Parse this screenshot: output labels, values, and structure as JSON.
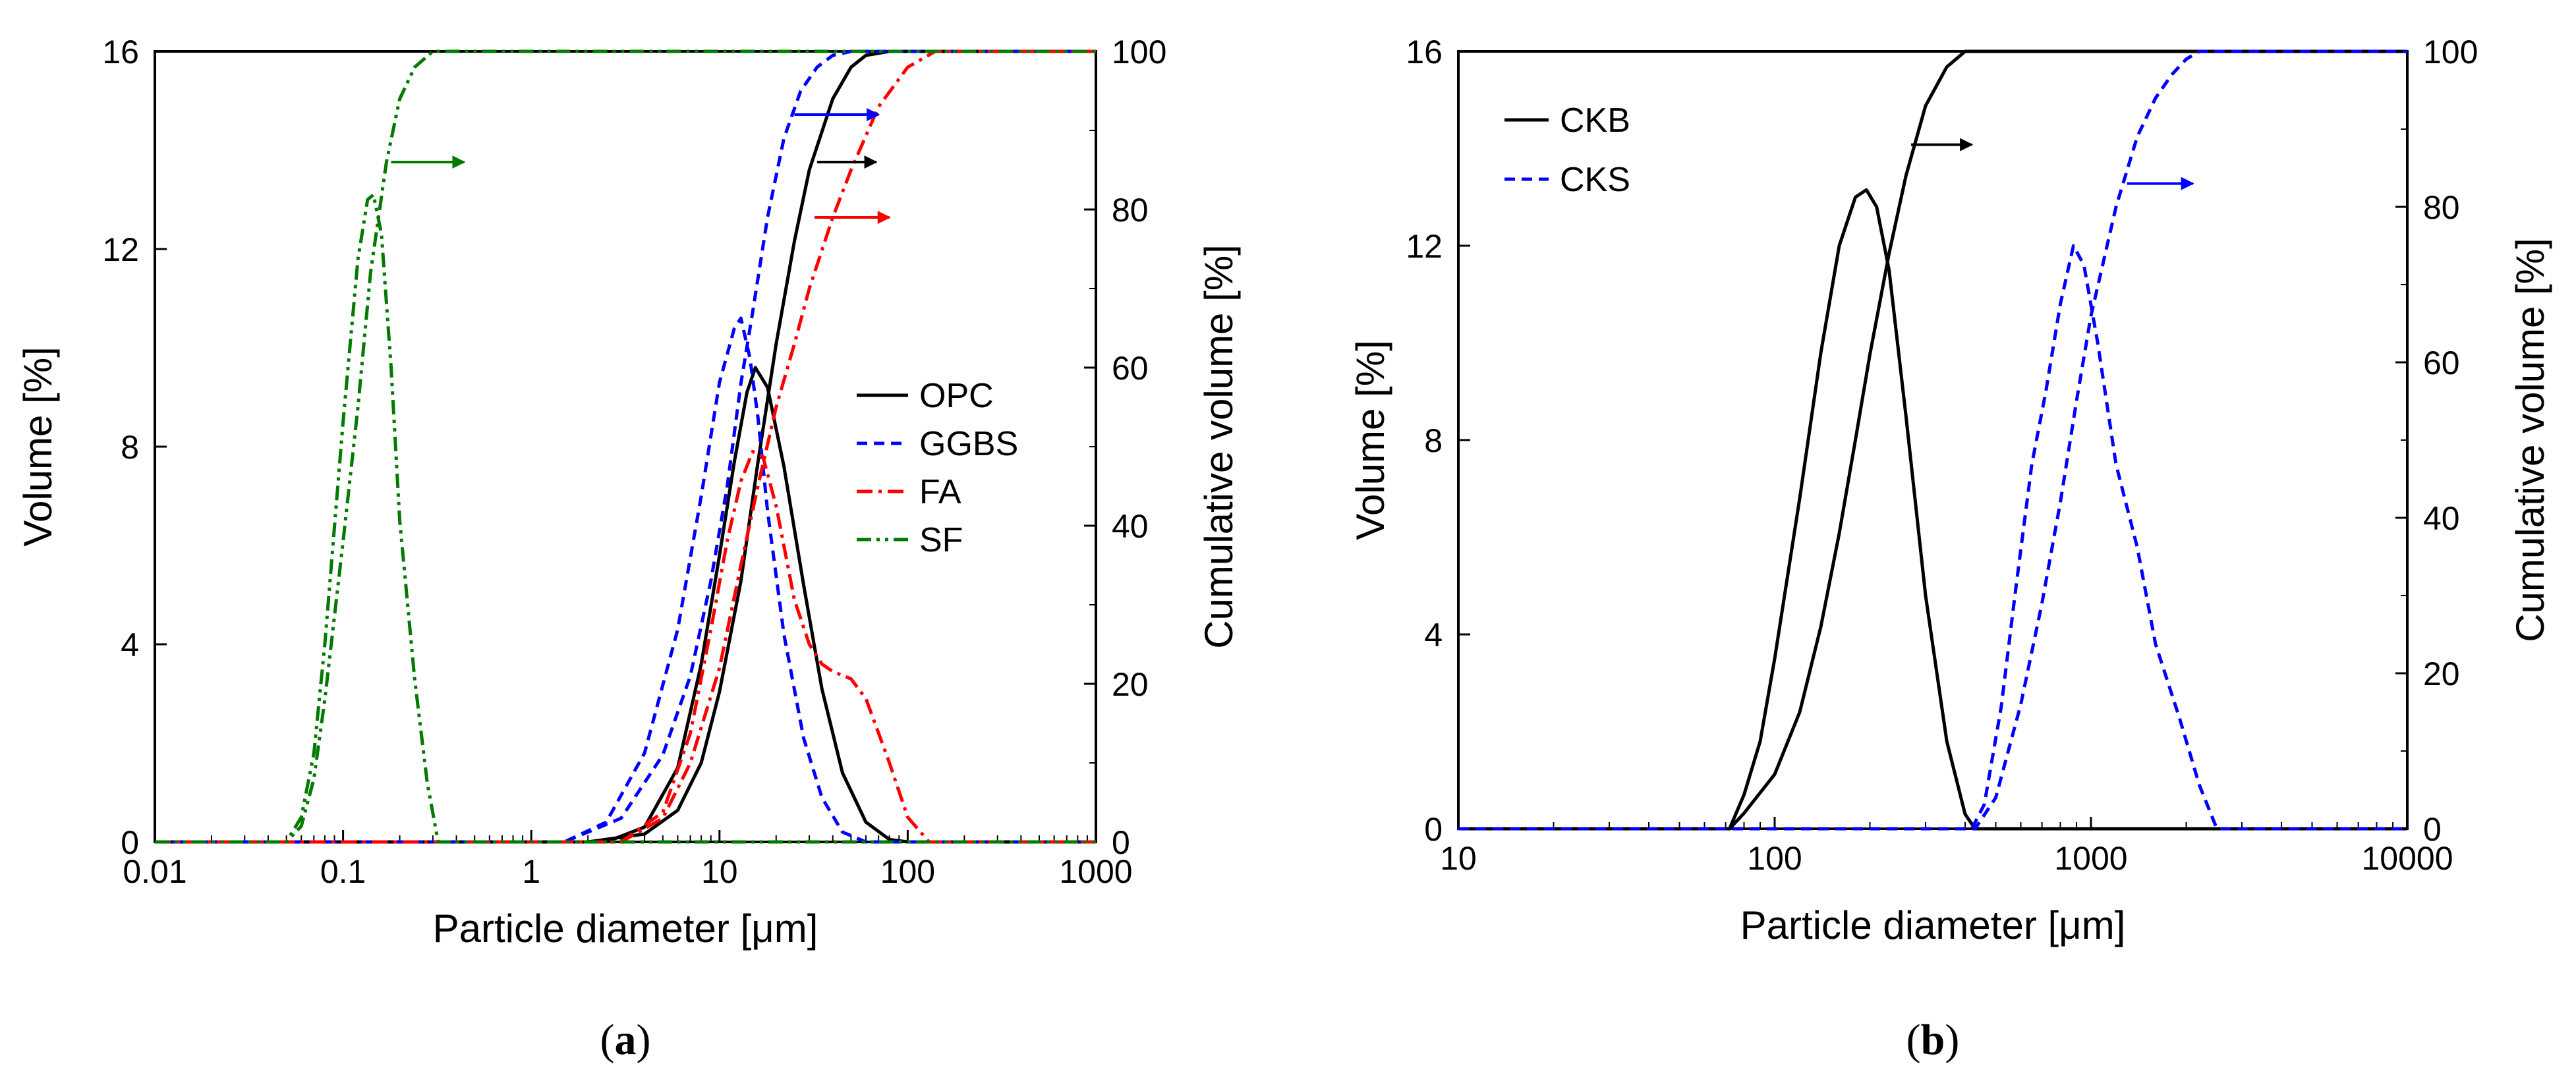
{
  "colors": {
    "OPC": "#000000",
    "GGBS": "#0000ff",
    "FA": "#ff0000",
    "SF": "#007a00",
    "CKB": "#000000",
    "CKS": "#0000ff"
  },
  "chart_data": [
    {
      "type": "line",
      "panel": "a",
      "caption": {
        "open": "(",
        "letter": "a",
        "close": ")"
      },
      "xlabel": "Particle diameter [μm]",
      "ylabel_left": "Volume [%]",
      "ylabel_right": "Cumulative volume [%]",
      "xscale": "log",
      "xlim": [
        0.01,
        1000
      ],
      "ylim_left": [
        0,
        16
      ],
      "ylim_right": [
        0,
        100
      ],
      "xticks": [
        0.01,
        0.1,
        1,
        10,
        100,
        1000
      ],
      "xtick_labels": [
        "0.01",
        "0.1",
        "1",
        "10",
        "100",
        "1000"
      ],
      "yticks_left": [
        0,
        4,
        8,
        12,
        16
      ],
      "yticks_left_labels": [
        "0",
        "4",
        "8",
        "12",
        "16"
      ],
      "yticks_right": [
        0,
        20,
        40,
        60,
        80,
        100
      ],
      "yticks_right_labels": [
        "0",
        "20",
        "40",
        "60",
        "80",
        "100"
      ],
      "legend": {
        "position": "center-right",
        "entries": [
          "OPC",
          "GGBS",
          "FA",
          "SF"
        ]
      },
      "series": [
        {
          "name": "OPC",
          "kind": "volume",
          "style": "solid",
          "x": [
            2.5,
            4,
            6,
            8,
            10,
            12,
            14,
            15.5,
            18,
            22,
            28,
            35,
            45,
            60,
            80,
            100
          ],
          "y": [
            0,
            0.3,
            1.5,
            3.6,
            5.8,
            7.7,
            9.1,
            9.6,
            9.2,
            7.6,
            5.2,
            3.1,
            1.4,
            0.4,
            0.05,
            0
          ]
        },
        {
          "name": "OPC",
          "kind": "cumulative",
          "style": "solid",
          "x": [
            2,
            4,
            6,
            8,
            10,
            13,
            16,
            20,
            25,
            30,
            40,
            50,
            60,
            80,
            100
          ],
          "y": [
            0,
            1,
            4,
            10,
            19,
            33,
            48,
            63,
            76,
            85,
            94,
            98,
            99.5,
            100,
            100
          ]
        },
        {
          "name": "GGBS",
          "kind": "volume",
          "style": "dashed",
          "x": [
            1.5,
            2.5,
            4,
            6,
            8,
            10,
            12,
            13,
            14.5,
            16,
            18,
            22,
            28,
            35,
            45,
            60
          ],
          "y": [
            0,
            0.4,
            1.8,
            4.3,
            7,
            9.3,
            10.4,
            10.6,
            9.8,
            8.6,
            6.7,
            4.2,
            2.1,
            0.9,
            0.2,
            0
          ]
        },
        {
          "name": "GGBS",
          "kind": "cumulative",
          "style": "dashed",
          "x": [
            1.5,
            3,
            5,
            7,
            9,
            11,
            13,
            15,
            18,
            22,
            27,
            33,
            40,
            50,
            60
          ],
          "y": [
            0,
            3,
            11,
            21,
            33,
            45,
            58,
            67,
            79,
            89,
            95,
            98,
            99.5,
            100,
            100
          ]
        },
        {
          "name": "FA",
          "kind": "volume",
          "style": "dashdot",
          "x": [
            3,
            5,
            7,
            9,
            11,
            13,
            15,
            17,
            20,
            25,
            30,
            35,
            40,
            50,
            60,
            80,
            100,
            130
          ],
          "y": [
            0,
            0.6,
            2.2,
            4.3,
            6.1,
            7.3,
            7.9,
            7.8,
            6.8,
            4.9,
            4,
            3.6,
            3.45,
            3.3,
            2.9,
            1.6,
            0.5,
            0
          ]
        },
        {
          "name": "FA",
          "kind": "cumulative",
          "style": "dashdot",
          "x": [
            3,
            5,
            7,
            10,
            13,
            16,
            20,
            25,
            30,
            40,
            50,
            70,
            100,
            140,
            200
          ],
          "y": [
            0,
            3,
            10,
            22,
            35,
            45,
            55,
            63,
            70,
            79,
            85,
            93,
            98,
            100,
            100
          ]
        },
        {
          "name": "SF",
          "kind": "volume",
          "style": "dashdotdot",
          "x": [
            0.05,
            0.06,
            0.07,
            0.08,
            0.1,
            0.12,
            0.135,
            0.145,
            0.16,
            0.18,
            0.2,
            0.24,
            0.28,
            0.32
          ],
          "y": [
            0,
            0.5,
            1.8,
            4,
            8.5,
            11.8,
            13,
            13.1,
            12.3,
            9.6,
            6.5,
            3.3,
            1.2,
            0
          ]
        },
        {
          "name": "SF",
          "kind": "cumulative",
          "style": "dashdotdot",
          "x": [
            0.05,
            0.06,
            0.07,
            0.08,
            0.1,
            0.12,
            0.14,
            0.17,
            0.2,
            0.24,
            0.3,
            0.35
          ],
          "y": [
            0,
            2,
            8,
            18,
            38,
            55,
            72,
            86,
            94,
            98,
            100,
            100
          ]
        }
      ],
      "arrows": [
        {
          "series": "SF",
          "x_start": 0.18,
          "x_end": 0.44,
          "y_right": 86
        },
        {
          "series": "GGBS",
          "x_start": 25,
          "x_end": 70,
          "y_right": 92
        },
        {
          "series": "OPC",
          "x_start": 33,
          "x_end": 68,
          "y_right": 86
        },
        {
          "series": "FA",
          "x_start": 32,
          "x_end": 80,
          "y_right": 79
        }
      ]
    },
    {
      "type": "line",
      "panel": "b",
      "caption": {
        "open": "(",
        "letter": "b",
        "close": ")"
      },
      "xlabel": "Particle diameter [μm]",
      "ylabel_left": "Volume [%]",
      "ylabel_right": "Cumulative volume [%]",
      "xscale": "log",
      "xlim": [
        10,
        10000
      ],
      "ylim_left": [
        0,
        16
      ],
      "ylim_right": [
        0,
        100
      ],
      "xticks": [
        10,
        100,
        1000,
        10000
      ],
      "xtick_labels": [
        "10",
        "100",
        "1000",
        "10000"
      ],
      "yticks_left": [
        0,
        4,
        8,
        12,
        16
      ],
      "yticks_left_labels": [
        "0",
        "4",
        "8",
        "12",
        "16"
      ],
      "yticks_right": [
        0,
        20,
        40,
        60,
        80,
        100
      ],
      "yticks_right_labels": [
        "0",
        "20",
        "40",
        "60",
        "80",
        "100"
      ],
      "legend": {
        "position": "top-left",
        "entries": [
          "CKB",
          "CKS"
        ]
      },
      "series": [
        {
          "name": "CKB",
          "kind": "volume",
          "style": "solid",
          "x": [
            72,
            80,
            90,
            100,
            120,
            140,
            160,
            180,
            195,
            210,
            230,
            260,
            300,
            350,
            400,
            430
          ],
          "y": [
            0,
            0.7,
            1.8,
            3.5,
            6.8,
            9.8,
            12,
            13,
            13.15,
            12.8,
            11.5,
            8.5,
            4.8,
            1.8,
            0.3,
            0
          ]
        },
        {
          "name": "CKB",
          "kind": "cumulative",
          "style": "solid",
          "x": [
            72,
            80,
            100,
            120,
            140,
            160,
            180,
            200,
            230,
            260,
            300,
            350,
            400,
            450
          ],
          "y": [
            0,
            2,
            7,
            15,
            26,
            38,
            50,
            61,
            74,
            84,
            93,
            98,
            100,
            100
          ]
        },
        {
          "name": "CKS",
          "kind": "volume",
          "style": "dashed",
          "x": [
            420,
            460,
            520,
            580,
            650,
            720,
            800,
            880,
            950,
            1050,
            1200,
            1400,
            1600,
            1900,
            2200,
            2500
          ],
          "y": [
            0,
            0.5,
            2.5,
            5,
            7.5,
            9,
            10.8,
            12,
            11.6,
            10,
            7.5,
            5.8,
            3.8,
            2.3,
            0.9,
            0
          ]
        },
        {
          "name": "CKS",
          "kind": "cumulative",
          "style": "dashed",
          "x": [
            430,
            500,
            600,
            700,
            800,
            900,
            1000,
            1200,
            1400,
            1600,
            1800,
            2000,
            2200,
            2400
          ],
          "y": [
            0,
            4,
            16,
            29,
            42,
            55,
            66,
            80,
            89,
            94,
            97,
            99,
            100,
            100
          ]
        }
      ],
      "arrows": [
        {
          "series": "CKB",
          "x_start": 270,
          "x_end": 420,
          "y_right": 88
        },
        {
          "series": "CKS",
          "x_start": 1300,
          "x_end": 2100,
          "y_right": 83
        }
      ]
    }
  ]
}
